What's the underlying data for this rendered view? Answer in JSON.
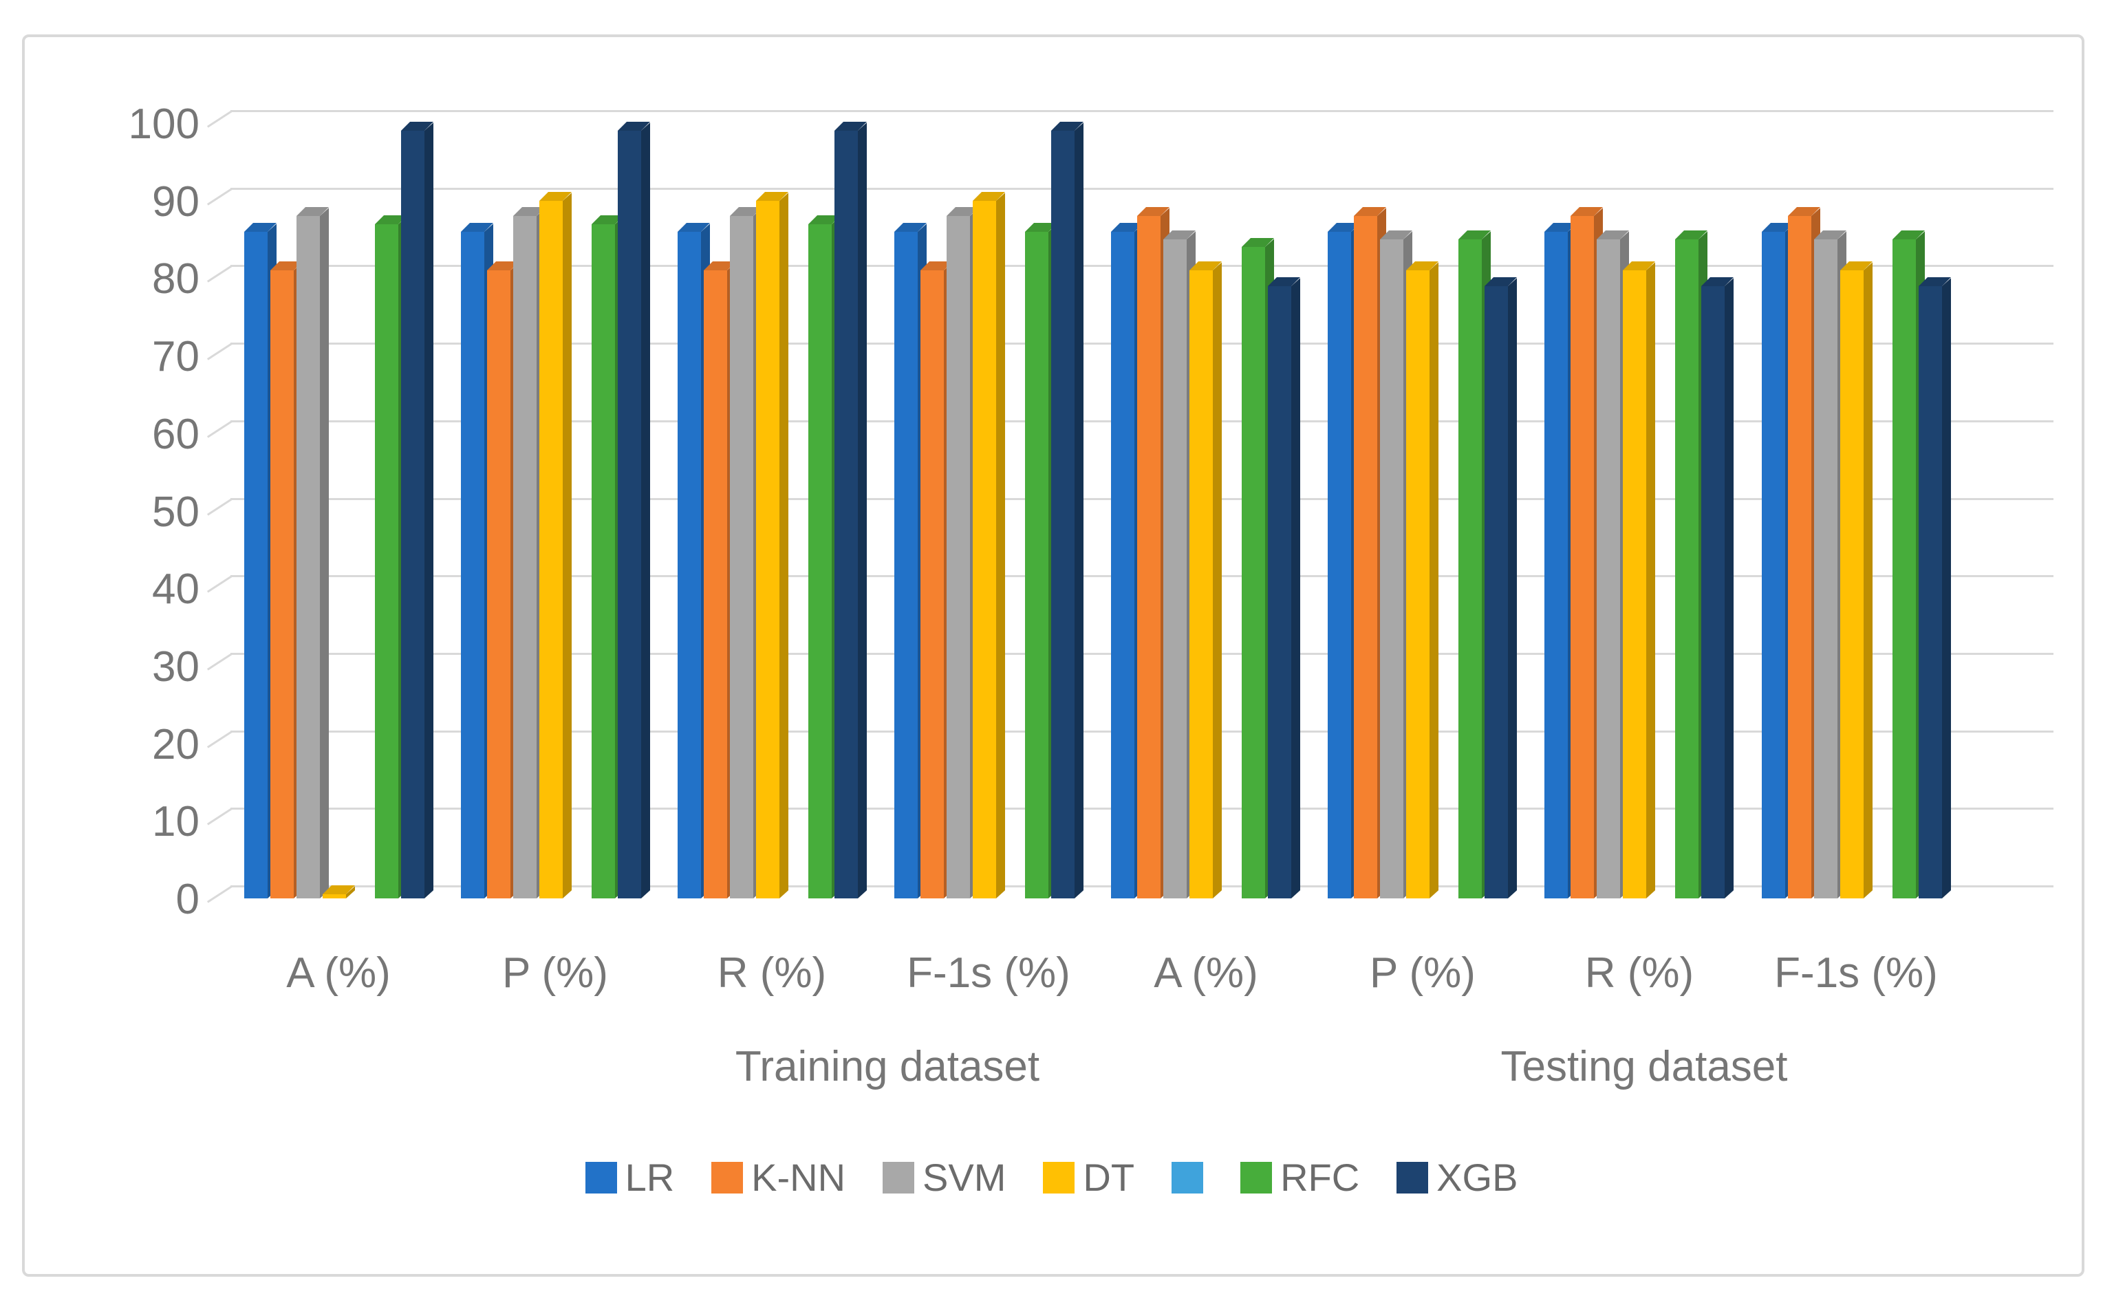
{
  "chart_data": {
    "type": "bar",
    "style": "pseudo-3d-clustered-column",
    "title": "",
    "y_axis": {
      "min": 0,
      "max": 100,
      "step": 10,
      "tick_labels": [
        "0",
        "10",
        "20",
        "30",
        "40",
        "50",
        "60",
        "70",
        "80",
        "90",
        "100"
      ]
    },
    "group_labels": [
      "A (%)",
      "P (%)",
      "R (%)",
      "F-1s (%)",
      "A (%)",
      "P (%)",
      "R (%)",
      "F-1s (%)"
    ],
    "dataset_labels": [
      "Training dataset",
      "Testing dataset"
    ],
    "series": [
      {
        "name": "LR",
        "color": "#2272C8",
        "values": [
          86,
          86,
          86,
          86,
          86,
          86,
          86,
          86
        ]
      },
      {
        "name": "K-NN",
        "color": "#F5812F",
        "values": [
          81,
          81,
          81,
          81,
          88,
          88,
          88,
          88
        ]
      },
      {
        "name": "SVM",
        "color": "#A8A8A8",
        "values": [
          88,
          88,
          88,
          88,
          85,
          85,
          85,
          85
        ]
      },
      {
        "name": "DT",
        "color": "#FFC003",
        "values": [
          0.5,
          90,
          90,
          90,
          81,
          81,
          81,
          81
        ]
      },
      {
        "name": "",
        "color": "#3FA3DC",
        "values": [
          0,
          0,
          0,
          0,
          0,
          0,
          0,
          0
        ]
      },
      {
        "name": "RFC",
        "color": "#47AD3B",
        "values": [
          87,
          87,
          87,
          86,
          84,
          85,
          85,
          85
        ]
      },
      {
        "name": "XGB",
        "color": "#1D4370",
        "values": [
          99,
          99,
          99,
          99,
          79,
          79,
          79,
          79
        ]
      }
    ],
    "legend_position": "bottom",
    "grid": true,
    "colors": {
      "gridline": "#D9D9D9",
      "axis_text": "#767676",
      "legend_text": "#6B6B6B",
      "border": "#D9D9D9",
      "background": "#FFFFFF"
    }
  }
}
